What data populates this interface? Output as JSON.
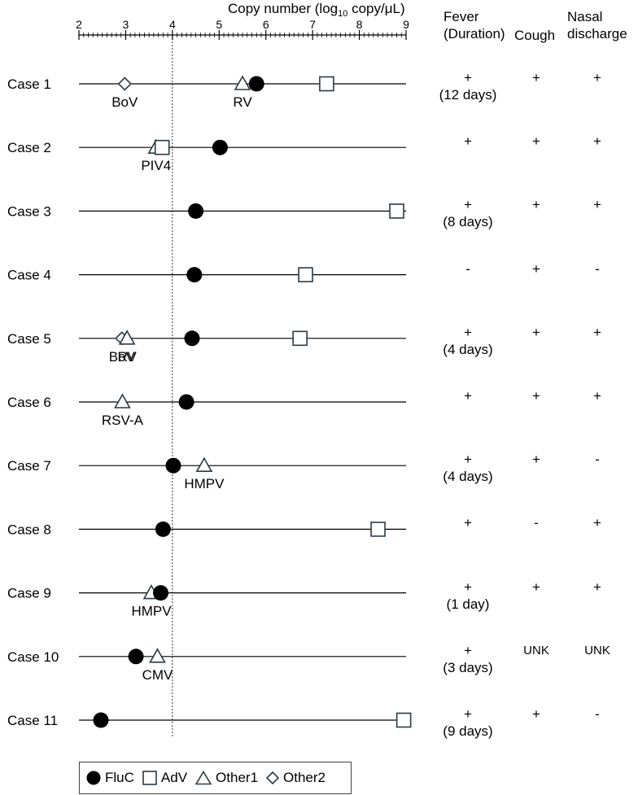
{
  "chart_data": {
    "type": "scatter",
    "xlabel_main": "Copy number (log",
    "xlabel_sub": "10",
    "xlabel_tail": " copy/μL)",
    "xlim": [
      2,
      9
    ],
    "ticks": [
      "2",
      "3",
      "4",
      "5",
      "6",
      "7",
      "8",
      "9"
    ],
    "threshold": 4,
    "series": [
      {
        "name": "FluC",
        "marker": "circle"
      },
      {
        "name": "AdV",
        "marker": "square"
      },
      {
        "name": "Other1",
        "marker": "triangle"
      },
      {
        "name": "Other2",
        "marker": "diamond"
      }
    ],
    "cases": [
      {
        "label": "Case 1",
        "points": [
          {
            "series": "Other2",
            "x": 2.98,
            "label": "BoV"
          },
          {
            "series": "Other1",
            "x": 5.5,
            "label": "RV"
          },
          {
            "series": "FluC",
            "x": 5.8
          },
          {
            "series": "AdV",
            "x": 7.3
          }
        ]
      },
      {
        "label": "Case 2",
        "points": [
          {
            "series": "Other1",
            "x": 3.65,
            "label": "PIV4"
          },
          {
            "series": "AdV",
            "x": 3.78
          },
          {
            "series": "FluC",
            "x": 5.02
          }
        ]
      },
      {
        "label": "Case 3",
        "points": [
          {
            "series": "FluC",
            "x": 4.5
          },
          {
            "series": "AdV",
            "x": 8.8
          }
        ]
      },
      {
        "label": "Case 4",
        "points": [
          {
            "series": "FluC",
            "x": 4.47
          },
          {
            "series": "AdV",
            "x": 6.85
          }
        ]
      },
      {
        "label": "Case 5",
        "points": [
          {
            "series": "Other2",
            "x": 2.92,
            "label": "BoV"
          },
          {
            "series": "Other1",
            "x": 3.03,
            "label": "RV"
          },
          {
            "series": "FluC",
            "x": 4.42
          },
          {
            "series": "AdV",
            "x": 6.73
          }
        ]
      },
      {
        "label": "Case 6",
        "points": [
          {
            "series": "Other1",
            "x": 2.93,
            "label": "RSV-A"
          },
          {
            "series": "FluC",
            "x": 4.3
          }
        ]
      },
      {
        "label": "Case 7",
        "points": [
          {
            "series": "FluC",
            "x": 4.02
          },
          {
            "series": "Other1",
            "x": 4.68,
            "label": "HMPV"
          }
        ]
      },
      {
        "label": "Case 8",
        "points": [
          {
            "series": "FluC",
            "x": 3.8
          },
          {
            "series": "AdV",
            "x": 8.4
          }
        ]
      },
      {
        "label": "Case 9",
        "points": [
          {
            "series": "Other1",
            "x": 3.55,
            "label": "HMPV"
          },
          {
            "series": "FluC",
            "x": 3.75
          }
        ]
      },
      {
        "label": "Case 10",
        "points": [
          {
            "series": "FluC",
            "x": 3.22
          },
          {
            "series": "Other1",
            "x": 3.68,
            "label": "CMV"
          }
        ]
      },
      {
        "label": "Case 11",
        "points": [
          {
            "series": "FluC",
            "x": 2.47
          },
          {
            "series": "AdV",
            "x": 8.95
          }
        ]
      }
    ]
  },
  "table": {
    "headers": {
      "fever": "Fever\n(Duration)",
      "cough": "Cough",
      "nasal": "Nasal\ndischarge"
    },
    "rows": [
      {
        "fever": "+\n(12 days)",
        "cough": "+",
        "nasal": "+"
      },
      {
        "fever": "+",
        "cough": "+",
        "nasal": "+"
      },
      {
        "fever": "+\n(8 days)",
        "cough": "+",
        "nasal": "+"
      },
      {
        "fever": "-",
        "cough": "+",
        "nasal": "-"
      },
      {
        "fever": "+\n(4 days)",
        "cough": "+",
        "nasal": "+"
      },
      {
        "fever": "+",
        "cough": "+",
        "nasal": "+"
      },
      {
        "fever": "+\n(4 days)",
        "cough": "+",
        "nasal": "-"
      },
      {
        "fever": "+",
        "cough": "-",
        "nasal": "+"
      },
      {
        "fever": "+\n(1 day)",
        "cough": "+",
        "nasal": "+"
      },
      {
        "fever": "+\n(3 days)",
        "cough": "UNK",
        "nasal": "UNK"
      },
      {
        "fever": "+\n(9 days)",
        "cough": "+",
        "nasal": "-"
      }
    ]
  },
  "colors": {
    "fill_circle": "#000000",
    "marker_stroke": "#2b3a44",
    "line": "#000000"
  }
}
